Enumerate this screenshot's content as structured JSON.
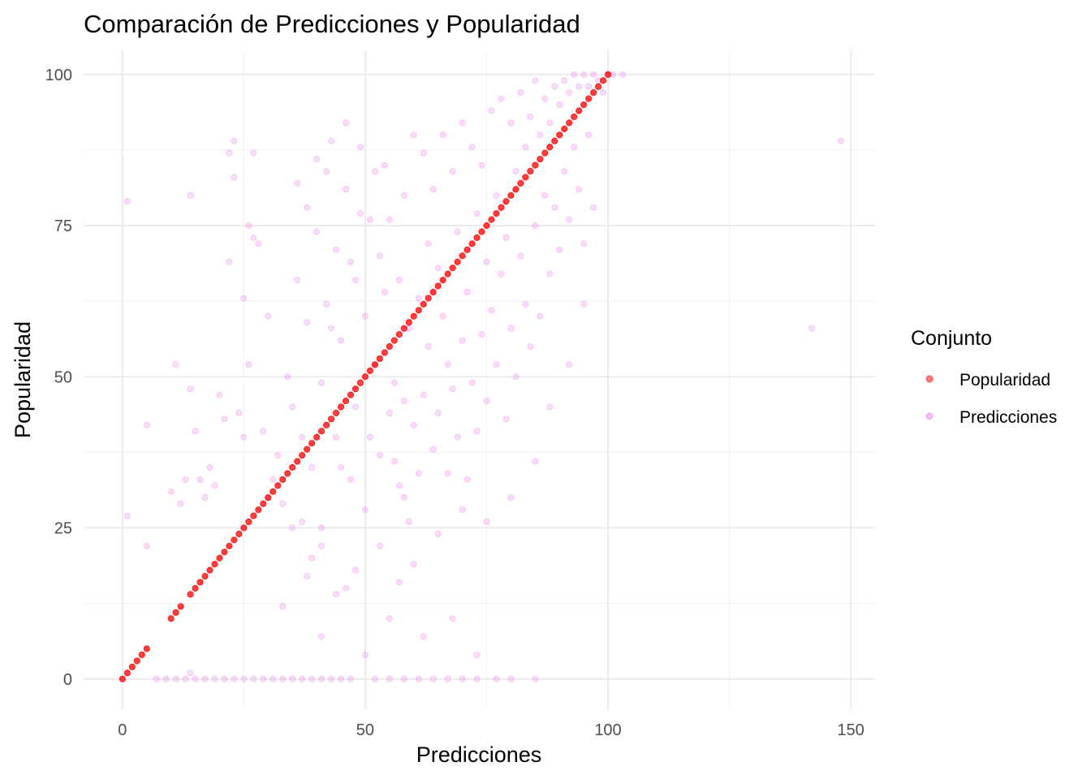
{
  "chart_data": {
    "type": "scatter",
    "title": "Comparación de Predicciones y Popularidad",
    "xlabel": "Predicciones",
    "ylabel": "Popularidad",
    "xlim": [
      -8,
      155
    ],
    "ylim": [
      -5,
      104
    ],
    "xticks": [
      0,
      50,
      100,
      150
    ],
    "yticks": [
      0,
      25,
      50,
      75,
      100
    ],
    "grid": true,
    "legend": {
      "title": "Conjunto",
      "position": "right",
      "entries": [
        "Popularidad",
        "Predicciones"
      ]
    },
    "series": [
      {
        "name": "Popularidad",
        "color": "#ff0000",
        "description_of_points": "x equals y",
        "points": [
          [
            0,
            0
          ],
          [
            1,
            1
          ],
          [
            2,
            2
          ],
          [
            3,
            3
          ],
          [
            4,
            4
          ],
          [
            5,
            5
          ],
          [
            10,
            10
          ],
          [
            11,
            11
          ],
          [
            12,
            12
          ],
          [
            14,
            14
          ],
          [
            15,
            15
          ],
          [
            16,
            16
          ],
          [
            17,
            17
          ],
          [
            18,
            18
          ],
          [
            19,
            19
          ],
          [
            20,
            20
          ],
          [
            21,
            21
          ],
          [
            22,
            22
          ],
          [
            23,
            23
          ],
          [
            24,
            24
          ],
          [
            25,
            25
          ],
          [
            26,
            26
          ],
          [
            27,
            27
          ],
          [
            28,
            28
          ],
          [
            29,
            29
          ],
          [
            30,
            30
          ],
          [
            31,
            31
          ],
          [
            32,
            32
          ],
          [
            33,
            33
          ],
          [
            34,
            34
          ],
          [
            35,
            35
          ],
          [
            36,
            36
          ],
          [
            37,
            37
          ],
          [
            38,
            38
          ],
          [
            39,
            39
          ],
          [
            40,
            40
          ],
          [
            41,
            41
          ],
          [
            42,
            42
          ],
          [
            43,
            43
          ],
          [
            44,
            44
          ],
          [
            45,
            45
          ],
          [
            46,
            46
          ],
          [
            47,
            47
          ],
          [
            48,
            48
          ],
          [
            49,
            49
          ],
          [
            50,
            50
          ],
          [
            51,
            51
          ],
          [
            52,
            52
          ],
          [
            53,
            53
          ],
          [
            54,
            54
          ],
          [
            55,
            55
          ],
          [
            56,
            56
          ],
          [
            57,
            57
          ],
          [
            58,
            58
          ],
          [
            59,
            59
          ],
          [
            60,
            60
          ],
          [
            61,
            61
          ],
          [
            62,
            62
          ],
          [
            63,
            63
          ],
          [
            64,
            64
          ],
          [
            65,
            65
          ],
          [
            66,
            66
          ],
          [
            67,
            67
          ],
          [
            68,
            68
          ],
          [
            69,
            69
          ],
          [
            70,
            70
          ],
          [
            71,
            71
          ],
          [
            72,
            72
          ],
          [
            73,
            73
          ],
          [
            74,
            74
          ],
          [
            75,
            75
          ],
          [
            76,
            76
          ],
          [
            77,
            77
          ],
          [
            78,
            78
          ],
          [
            79,
            79
          ],
          [
            80,
            80
          ],
          [
            81,
            81
          ],
          [
            82,
            82
          ],
          [
            83,
            83
          ],
          [
            84,
            84
          ],
          [
            85,
            85
          ],
          [
            86,
            86
          ],
          [
            87,
            87
          ],
          [
            88,
            88
          ],
          [
            89,
            89
          ],
          [
            90,
            90
          ],
          [
            91,
            91
          ],
          [
            92,
            92
          ],
          [
            93,
            93
          ],
          [
            94,
            94
          ],
          [
            95,
            95
          ],
          [
            96,
            96
          ],
          [
            97,
            97
          ],
          [
            98,
            98
          ],
          [
            99,
            99
          ],
          [
            100,
            100
          ]
        ]
      },
      {
        "name": "Predicciones",
        "color": "#ee82ee",
        "points": [
          [
            1,
            79
          ],
          [
            1,
            27
          ],
          [
            5,
            42
          ],
          [
            5,
            22
          ],
          [
            10,
            31
          ],
          [
            11,
            52
          ],
          [
            12,
            29
          ],
          [
            13,
            33
          ],
          [
            14,
            80
          ],
          [
            14,
            48
          ],
          [
            15,
            41
          ],
          [
            16,
            33
          ],
          [
            17,
            30
          ],
          [
            18,
            35
          ],
          [
            19,
            32
          ],
          [
            20,
            47
          ],
          [
            21,
            43
          ],
          [
            22,
            87
          ],
          [
            22,
            69
          ],
          [
            23,
            89
          ],
          [
            23,
            83
          ],
          [
            24,
            44
          ],
          [
            25,
            40
          ],
          [
            25,
            63
          ],
          [
            26,
            75
          ],
          [
            26,
            52
          ],
          [
            27,
            87
          ],
          [
            27,
            73
          ],
          [
            28,
            72
          ],
          [
            29,
            41
          ],
          [
            30,
            60
          ],
          [
            30,
            30
          ],
          [
            31,
            33
          ],
          [
            32,
            37
          ],
          [
            33,
            29
          ],
          [
            34,
            50
          ],
          [
            35,
            45
          ],
          [
            35,
            25
          ],
          [
            36,
            82
          ],
          [
            36,
            66
          ],
          [
            37,
            26
          ],
          [
            37,
            40
          ],
          [
            38,
            78
          ],
          [
            38,
            59
          ],
          [
            39,
            35
          ],
          [
            39,
            20
          ],
          [
            40,
            74
          ],
          [
            40,
            86
          ],
          [
            41,
            49
          ],
          [
            41,
            25
          ],
          [
            42,
            84
          ],
          [
            42,
            62
          ],
          [
            43,
            89
          ],
          [
            43,
            58
          ],
          [
            44,
            40
          ],
          [
            44,
            71
          ],
          [
            45,
            56
          ],
          [
            45,
            35
          ],
          [
            46,
            92
          ],
          [
            46,
            81
          ],
          [
            47,
            69
          ],
          [
            47,
            33
          ],
          [
            48,
            66
          ],
          [
            48,
            45
          ],
          [
            49,
            88
          ],
          [
            49,
            77
          ],
          [
            50,
            60
          ],
          [
            50,
            28
          ],
          [
            51,
            76
          ],
          [
            51,
            40
          ],
          [
            52,
            84
          ],
          [
            52,
            52
          ],
          [
            53,
            70
          ],
          [
            53,
            37
          ],
          [
            54,
            85
          ],
          [
            54,
            64
          ],
          [
            55,
            76
          ],
          [
            55,
            44
          ],
          [
            56,
            49
          ],
          [
            56,
            36
          ],
          [
            57,
            66
          ],
          [
            57,
            32
          ],
          [
            58,
            80
          ],
          [
            58,
            46
          ],
          [
            59,
            58
          ],
          [
            59,
            26
          ],
          [
            60,
            90
          ],
          [
            60,
            42
          ],
          [
            61,
            63
          ],
          [
            61,
            34
          ],
          [
            62,
            87
          ],
          [
            62,
            47
          ],
          [
            63,
            72
          ],
          [
            63,
            55
          ],
          [
            64,
            81
          ],
          [
            64,
            38
          ],
          [
            65,
            68
          ],
          [
            65,
            44
          ],
          [
            66,
            90
          ],
          [
            66,
            60
          ],
          [
            67,
            52
          ],
          [
            67,
            34
          ],
          [
            68,
            84
          ],
          [
            68,
            48
          ],
          [
            69,
            74
          ],
          [
            69,
            40
          ],
          [
            70,
            92
          ],
          [
            70,
            56
          ],
          [
            71,
            64
          ],
          [
            71,
            33
          ],
          [
            72,
            88
          ],
          [
            72,
            49
          ],
          [
            73,
            77
          ],
          [
            73,
            41
          ],
          [
            74,
            85
          ],
          [
            74,
            57
          ],
          [
            75,
            69
          ],
          [
            75,
            46
          ],
          [
            76,
            94
          ],
          [
            76,
            61
          ],
          [
            77,
            80
          ],
          [
            77,
            52
          ],
          [
            78,
            96
          ],
          [
            78,
            67
          ],
          [
            79,
            73
          ],
          [
            79,
            43
          ],
          [
            80,
            92
          ],
          [
            80,
            58
          ],
          [
            81,
            84
          ],
          [
            81,
            50
          ],
          [
            82,
            97
          ],
          [
            82,
            70
          ],
          [
            83,
            88
          ],
          [
            83,
            62
          ],
          [
            84,
            93
          ],
          [
            84,
            55
          ],
          [
            85,
            99
          ],
          [
            85,
            75
          ],
          [
            86,
            90
          ],
          [
            86,
            60
          ],
          [
            87,
            96
          ],
          [
            87,
            80
          ],
          [
            88,
            92
          ],
          [
            88,
            67
          ],
          [
            89,
            98
          ],
          [
            89,
            78
          ],
          [
            90,
            95
          ],
          [
            90,
            71
          ],
          [
            91,
            99
          ],
          [
            91,
            84
          ],
          [
            92,
            97
          ],
          [
            92,
            76
          ],
          [
            93,
            100
          ],
          [
            93,
            88
          ],
          [
            94,
            98
          ],
          [
            94,
            81
          ],
          [
            95,
            100
          ],
          [
            95,
            72
          ],
          [
            96,
            98
          ],
          [
            96,
            90
          ],
          [
            97,
            100
          ],
          [
            98,
            99
          ],
          [
            99,
            97
          ],
          [
            100,
            100
          ],
          [
            101,
            100
          ],
          [
            103,
            100
          ],
          [
            142,
            58
          ],
          [
            148,
            89
          ],
          [
            7,
            0
          ],
          [
            9,
            0
          ],
          [
            11,
            0
          ],
          [
            13,
            0
          ],
          [
            15,
            0
          ],
          [
            17,
            0
          ],
          [
            19,
            0
          ],
          [
            21,
            0
          ],
          [
            23,
            0
          ],
          [
            25,
            0
          ],
          [
            27,
            0
          ],
          [
            29,
            0
          ],
          [
            31,
            0
          ],
          [
            33,
            0
          ],
          [
            35,
            0
          ],
          [
            37,
            0
          ],
          [
            39,
            0
          ],
          [
            41,
            0
          ],
          [
            43,
            0
          ],
          [
            45,
            0
          ],
          [
            47,
            0
          ],
          [
            52,
            0
          ],
          [
            55,
            0
          ],
          [
            58,
            0
          ],
          [
            61,
            0
          ],
          [
            64,
            0
          ],
          [
            67,
            0
          ],
          [
            70,
            0
          ],
          [
            73,
            0
          ],
          [
            77,
            0
          ],
          [
            80,
            0
          ],
          [
            85,
            0
          ],
          [
            14,
            1
          ],
          [
            41,
            22
          ],
          [
            38,
            17
          ],
          [
            46,
            15
          ],
          [
            50,
            4
          ],
          [
            55,
            10
          ],
          [
            62,
            7
          ],
          [
            68,
            10
          ],
          [
            73,
            4
          ],
          [
            41,
            7
          ],
          [
            33,
            12
          ],
          [
            57,
            16
          ],
          [
            60,
            19
          ],
          [
            65,
            24
          ],
          [
            70,
            28
          ],
          [
            75,
            26
          ],
          [
            80,
            30
          ],
          [
            85,
            36
          ],
          [
            88,
            45
          ],
          [
            92,
            52
          ],
          [
            95,
            62
          ],
          [
            97,
            78
          ],
          [
            58,
            30
          ],
          [
            53,
            22
          ],
          [
            48,
            18
          ],
          [
            44,
            14
          ]
        ]
      }
    ]
  }
}
